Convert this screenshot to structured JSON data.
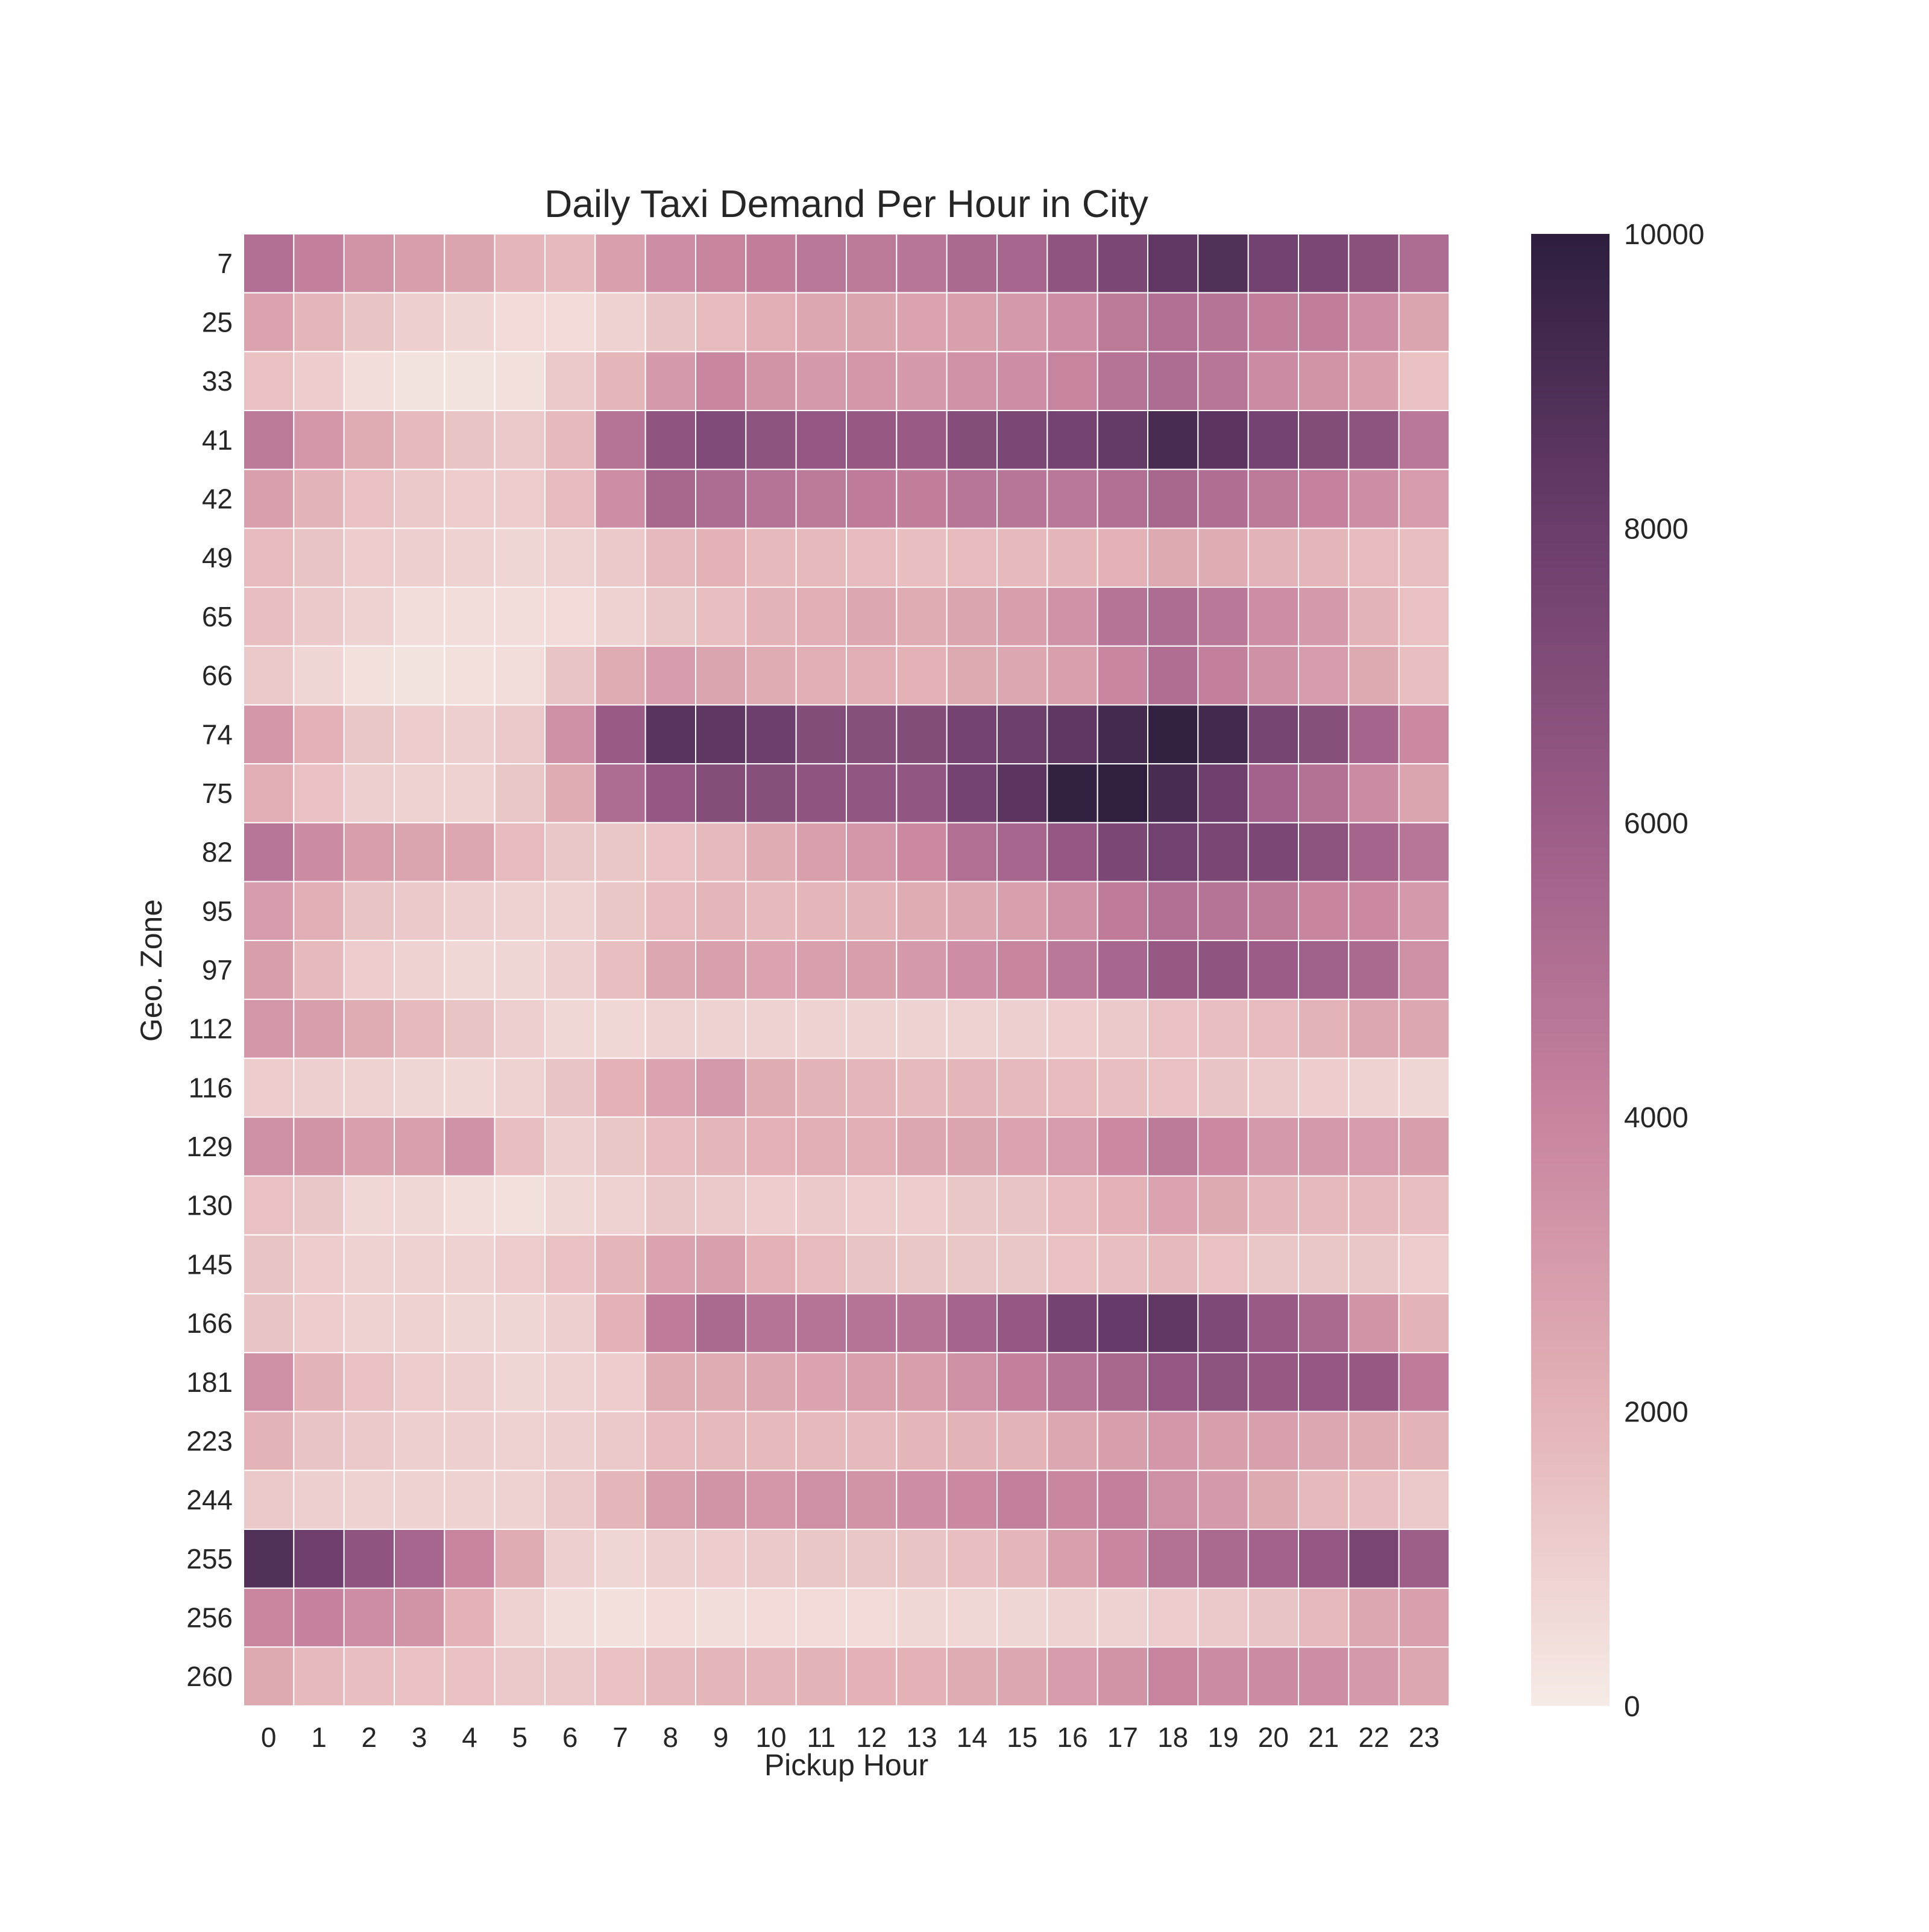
{
  "chart_data": {
    "type": "heatmap",
    "title": "Daily Taxi Demand Per Hour in City",
    "xlabel": "Pickup Hour",
    "ylabel": "Geo. Zone",
    "x": [
      "0",
      "1",
      "2",
      "3",
      "4",
      "5",
      "6",
      "7",
      "8",
      "9",
      "10",
      "11",
      "12",
      "13",
      "14",
      "15",
      "16",
      "17",
      "18",
      "19",
      "20",
      "21",
      "22",
      "23"
    ],
    "y": [
      "7",
      "25",
      "33",
      "41",
      "42",
      "49",
      "65",
      "66",
      "74",
      "75",
      "82",
      "95",
      "97",
      "112",
      "116",
      "129",
      "130",
      "145",
      "166",
      "181",
      "223",
      "244",
      "255",
      "256",
      "260"
    ],
    "colorbar": {
      "min": 0,
      "max": 10000,
      "ticks": [
        "0",
        "2000",
        "4000",
        "6000",
        "8000",
        "10000"
      ],
      "colors": [
        "#f6ebe6",
        "#e4b3b7",
        "#c7849f",
        "#9b5c87",
        "#6a3d6b",
        "#2d1e3e"
      ]
    },
    "values": [
      [
        5000,
        4200,
        3300,
        2900,
        2600,
        1900,
        1800,
        2800,
        3600,
        4000,
        4300,
        4600,
        4500,
        4700,
        5300,
        5500,
        6500,
        7300,
        8300,
        8800,
        7700,
        7300,
        6700,
        5200
      ],
      [
        2700,
        1900,
        1400,
        1000,
        800,
        600,
        600,
        900,
        1400,
        1700,
        2200,
        2500,
        2600,
        2700,
        2800,
        3100,
        3600,
        4500,
        5000,
        4800,
        4300,
        4300,
        3600,
        2600
      ],
      [
        1500,
        1100,
        500,
        300,
        300,
        400,
        1200,
        1900,
        3100,
        3900,
        3300,
        3100,
        3200,
        3100,
        3400,
        3600,
        4000,
        4800,
        5200,
        4700,
        3700,
        3300,
        2800,
        1500
      ],
      [
        4500,
        3200,
        2300,
        1800,
        1400,
        1200,
        1800,
        4800,
        6500,
        7100,
        6600,
        6300,
        6200,
        6100,
        6900,
        7300,
        7600,
        8200,
        9100,
        8500,
        7600,
        7000,
        6600,
        4600
      ],
      [
        2800,
        2000,
        1500,
        1200,
        1100,
        1100,
        1700,
        3600,
        5400,
        5200,
        4800,
        4500,
        4400,
        4300,
        4700,
        4700,
        4600,
        5000,
        5400,
        5100,
        4500,
        4100,
        3600,
        3000
      ],
      [
        1700,
        1400,
        1100,
        1000,
        900,
        800,
        900,
        1200,
        1800,
        2100,
        1800,
        1800,
        1700,
        1600,
        1700,
        1800,
        1900,
        2100,
        2400,
        2300,
        2000,
        1900,
        1700,
        1600
      ],
      [
        1600,
        1200,
        900,
        500,
        500,
        500,
        600,
        900,
        1300,
        1600,
        2000,
        2200,
        2500,
        2300,
        2600,
        2900,
        3400,
        4800,
        5200,
        4600,
        3600,
        3100,
        2000,
        1500
      ],
      [
        1200,
        800,
        400,
        300,
        400,
        500,
        1400,
        2300,
        3000,
        2600,
        2300,
        2200,
        2200,
        2100,
        2400,
        2500,
        2800,
        3900,
        5100,
        4200,
        3500,
        3000,
        2400,
        1600
      ],
      [
        3200,
        2100,
        1300,
        1100,
        1000,
        1200,
        3500,
        6100,
        8600,
        8400,
        7900,
        7000,
        6800,
        7000,
        7600,
        7900,
        8400,
        9200,
        9800,
        9300,
        7500,
        6800,
        5600,
        3800
      ],
      [
        2200,
        1500,
        1000,
        900,
        900,
        1300,
        2300,
        5200,
        6300,
        6900,
        6800,
        6500,
        6400,
        6400,
        7600,
        8500,
        9800,
        9900,
        9100,
        7800,
        5700,
        4900,
        3700,
        2600
      ],
      [
        4700,
        3700,
        2900,
        2600,
        2500,
        1700,
        1300,
        1300,
        1500,
        1800,
        2300,
        2800,
        3200,
        3800,
        5000,
        5500,
        6300,
        7300,
        7700,
        7400,
        7300,
        6600,
        5600,
        4700
      ],
      [
        3000,
        2200,
        1400,
        1200,
        1000,
        900,
        900,
        1300,
        1700,
        1900,
        1800,
        1900,
        2000,
        2300,
        2500,
        2800,
        3500,
        4400,
        5000,
        4800,
        4500,
        4000,
        3800,
        3100
      ],
      [
        2900,
        1800,
        1100,
        900,
        700,
        800,
        1000,
        1600,
        2500,
        2800,
        2700,
        2800,
        2900,
        3100,
        3600,
        4000,
        4600,
        5500,
        6200,
        6500,
        6000,
        5800,
        5300,
        3500
      ],
      [
        3200,
        2900,
        2300,
        1800,
        1400,
        1000,
        700,
        700,
        900,
        900,
        900,
        900,
        900,
        900,
        900,
        1000,
        1100,
        1200,
        1500,
        1600,
        1700,
        2000,
        2500,
        2500
      ],
      [
        1100,
        1000,
        900,
        800,
        700,
        900,
        1400,
        2100,
        2700,
        3100,
        2300,
        2000,
        1900,
        1800,
        1900,
        1800,
        1700,
        1600,
        1500,
        1400,
        1200,
        1100,
        900,
        800
      ],
      [
        3500,
        3300,
        2800,
        2800,
        3400,
        1600,
        1000,
        1300,
        1700,
        1900,
        2100,
        2200,
        2200,
        2500,
        2600,
        2700,
        3000,
        3800,
        4500,
        3800,
        3100,
        3100,
        3000,
        2900
      ],
      [
        1500,
        1300,
        700,
        700,
        500,
        400,
        700,
        900,
        1300,
        1200,
        1100,
        1200,
        1100,
        1100,
        1300,
        1400,
        1700,
        2100,
        2700,
        2400,
        1900,
        1800,
        1800,
        1600
      ],
      [
        1400,
        1100,
        900,
        900,
        900,
        1100,
        1500,
        1900,
        2700,
        2800,
        2100,
        1700,
        1400,
        1300,
        1300,
        1300,
        1500,
        1600,
        1800,
        1500,
        1300,
        1300,
        1300,
        1100
      ],
      [
        1400,
        1100,
        900,
        900,
        800,
        800,
        1000,
        2100,
        4400,
        5300,
        4800,
        4800,
        4800,
        4800,
        5600,
        6300,
        7600,
        8100,
        8300,
        7200,
        6100,
        5300,
        3300,
        2000
      ],
      [
        3500,
        2000,
        1500,
        1100,
        1000,
        800,
        900,
        1100,
        2300,
        2300,
        2500,
        2700,
        2800,
        2900,
        3500,
        4200,
        4800,
        5400,
        6300,
        6600,
        6200,
        6300,
        6200,
        4400
      ],
      [
        2000,
        1400,
        1200,
        1000,
        1000,
        900,
        1000,
        1200,
        1700,
        1800,
        1800,
        1800,
        1800,
        1900,
        2000,
        2000,
        2500,
        2900,
        3200,
        2900,
        2800,
        2500,
        2300,
        2000
      ],
      [
        1200,
        1000,
        900,
        900,
        900,
        900,
        1200,
        1900,
        2900,
        3300,
        3200,
        3500,
        3300,
        3600,
        3800,
        4200,
        3900,
        4200,
        3500,
        3100,
        2400,
        1800,
        1600,
        1200
      ],
      [
        8800,
        7800,
        6500,
        5500,
        4000,
        2300,
        1000,
        800,
        1000,
        1100,
        1200,
        1300,
        1300,
        1400,
        1600,
        1900,
        2800,
        3900,
        4900,
        5300,
        5700,
        6300,
        7400,
        5900
      ],
      [
        3900,
        4100,
        3600,
        3300,
        2100,
        900,
        500,
        400,
        600,
        500,
        600,
        600,
        600,
        700,
        700,
        800,
        900,
        900,
        1100,
        1200,
        1400,
        1800,
        2500,
        2800
      ],
      [
        2400,
        1800,
        1600,
        1500,
        1500,
        1200,
        1200,
        1500,
        1800,
        1900,
        1900,
        2000,
        2100,
        2100,
        2300,
        2500,
        3000,
        3300,
        4000,
        3700,
        3700,
        3600,
        3100,
        2500
      ]
    ]
  }
}
